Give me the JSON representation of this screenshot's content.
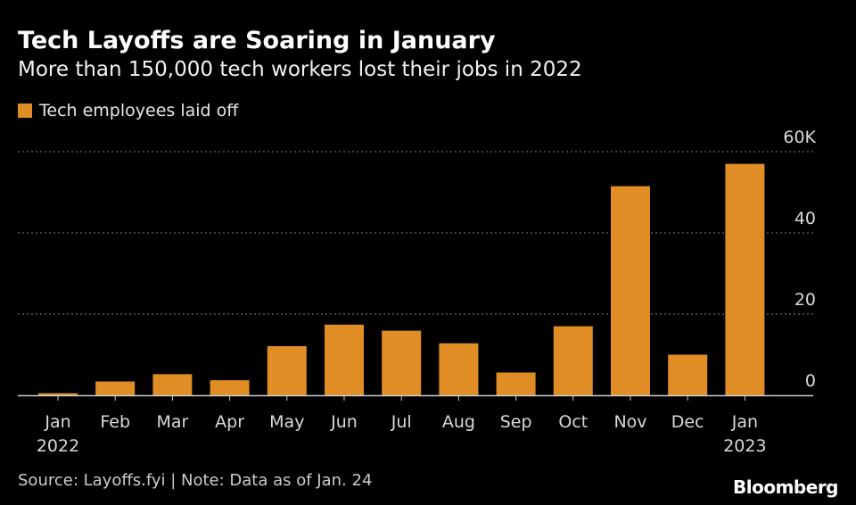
{
  "title": "Tech Layoffs are Soaring in January",
  "subtitle": "More than 150,000 tech workers lost their jobs in 2022",
  "legend": {
    "label": "Tech employees laid off",
    "color": "#e08d26"
  },
  "footer": {
    "source": "Source: Layoffs.fyi | Note: Data as of Jan. 24",
    "brand": "Bloomberg"
  },
  "colors": {
    "background": "#000000",
    "bar": "#e08d26",
    "grid": "#808080",
    "axis": "#cccccc"
  },
  "chart_data": {
    "type": "bar",
    "categories": [
      "Jan",
      "Feb",
      "Mar",
      "Apr",
      "May",
      "Jun",
      "Jul",
      "Aug",
      "Sep",
      "Oct",
      "Nov",
      "Dec",
      "Jan"
    ],
    "category_sublabels": [
      "2022",
      "",
      "",
      "",
      "",
      "",
      "",
      "",
      "",
      "",
      "",
      "",
      "2023"
    ],
    "series": [
      {
        "name": "Tech employees laid off",
        "values": [
          500,
          3400,
          5200,
          3700,
          12100,
          17400,
          15900,
          12800,
          5600,
          17000,
          51500,
          10000,
          57000
        ]
      }
    ],
    "yticks": [
      0,
      20,
      40,
      60
    ],
    "ytick_labels": [
      "0",
      "20",
      "40",
      "60K"
    ],
    "ylim": [
      0,
      60000
    ],
    "y_axis_side": "right",
    "grid": true,
    "legend_position": "top-left"
  }
}
